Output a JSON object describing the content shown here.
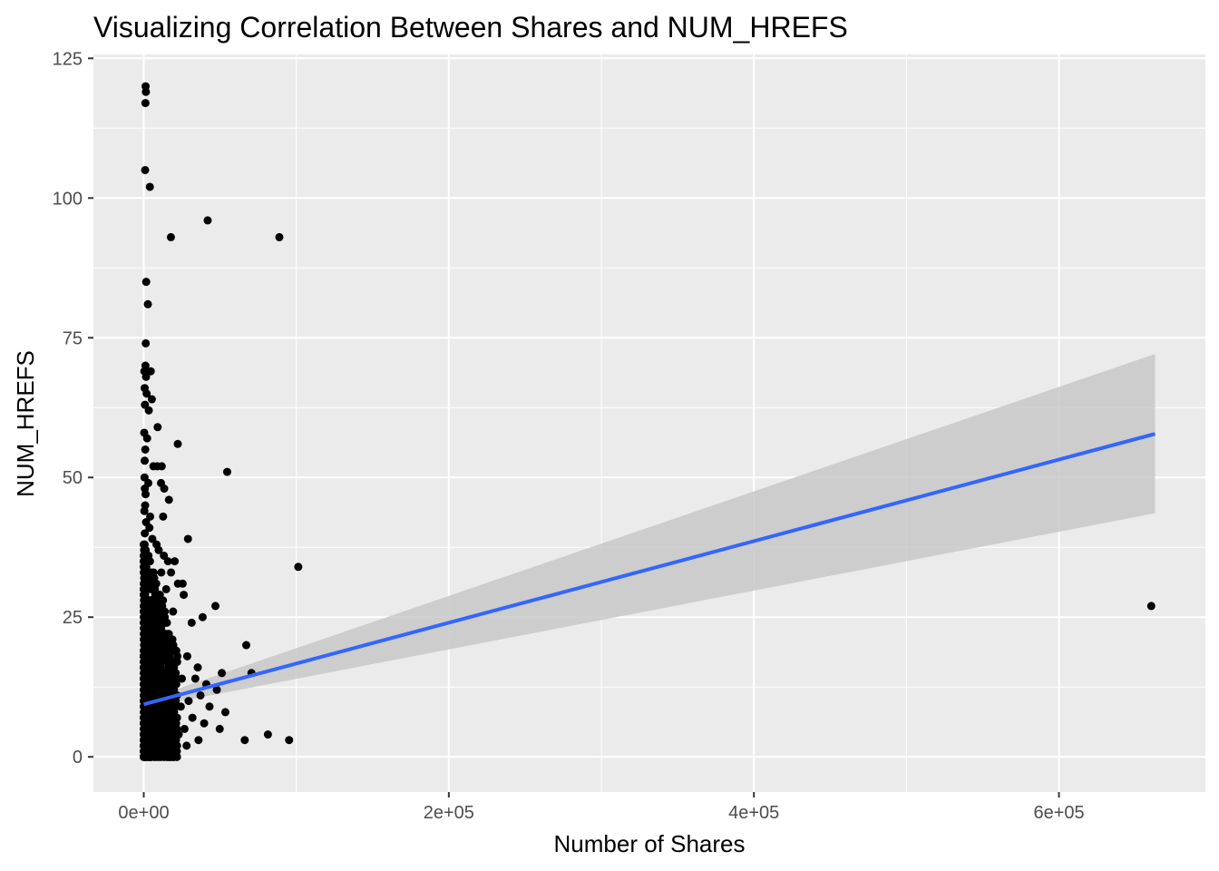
{
  "chart_data": {
    "type": "scatter",
    "title": "Visualizing Correlation Between Shares and NUM_HREFS",
    "xlabel": "Number of Shares",
    "ylabel": "NUM_HREFS",
    "xlim": [
      -33000,
      696000
    ],
    "ylim": [
      -6.3,
      125.7
    ],
    "x_ticks": [
      0,
      200000,
      400000,
      600000
    ],
    "x_tick_labels": [
      "0e+00",
      "2e+05",
      "4e+05",
      "6e+05"
    ],
    "y_ticks": [
      0,
      25,
      50,
      75,
      100,
      125
    ],
    "y_tick_labels": [
      "0",
      "25",
      "50",
      "75",
      "100",
      "125"
    ],
    "grid": true,
    "legend": "none",
    "colors": {
      "panel": "#ebebeb",
      "grid": "#ffffff",
      "points": "#000000",
      "trend_line": "#3366ff",
      "confidence_band": "#c8c8c8"
    },
    "points": [
      {
        "x": 1200,
        "y": 120
      },
      {
        "x": 1400,
        "y": 119
      },
      {
        "x": 1100,
        "y": 117
      },
      {
        "x": 900,
        "y": 105
      },
      {
        "x": 4000,
        "y": 102
      },
      {
        "x": 41900,
        "y": 96
      },
      {
        "x": 17800,
        "y": 93
      },
      {
        "x": 88900,
        "y": 93
      },
      {
        "x": 1600,
        "y": 85
      },
      {
        "x": 2700,
        "y": 81
      },
      {
        "x": 1300,
        "y": 74
      },
      {
        "x": 1100,
        "y": 70
      },
      {
        "x": 400,
        "y": 69
      },
      {
        "x": 4600,
        "y": 69
      },
      {
        "x": 1500,
        "y": 68
      },
      {
        "x": 600,
        "y": 66
      },
      {
        "x": 1900,
        "y": 65
      },
      {
        "x": 5300,
        "y": 64
      },
      {
        "x": 800,
        "y": 63
      },
      {
        "x": 3300,
        "y": 62
      },
      {
        "x": 9100,
        "y": 59
      },
      {
        "x": 300,
        "y": 58
      },
      {
        "x": 2200,
        "y": 57
      },
      {
        "x": 22300,
        "y": 56
      },
      {
        "x": 1000,
        "y": 55
      },
      {
        "x": 600,
        "y": 53
      },
      {
        "x": 6300,
        "y": 52
      },
      {
        "x": 8900,
        "y": 52
      },
      {
        "x": 11800,
        "y": 52
      },
      {
        "x": 54700,
        "y": 51
      },
      {
        "x": 500,
        "y": 50
      },
      {
        "x": 3000,
        "y": 49
      },
      {
        "x": 11300,
        "y": 49
      },
      {
        "x": 700,
        "y": 48
      },
      {
        "x": 13400,
        "y": 48
      },
      {
        "x": 1200,
        "y": 47
      },
      {
        "x": 16500,
        "y": 46
      },
      {
        "x": 900,
        "y": 45
      },
      {
        "x": 400,
        "y": 44
      },
      {
        "x": 4200,
        "y": 43
      },
      {
        "x": 1500,
        "y": 42
      },
      {
        "x": 3700,
        "y": 41
      },
      {
        "x": 700,
        "y": 40
      },
      {
        "x": 12700,
        "y": 43
      },
      {
        "x": 29000,
        "y": 39
      },
      {
        "x": 5600,
        "y": 39
      },
      {
        "x": 8400,
        "y": 38
      },
      {
        "x": 9800,
        "y": 37
      },
      {
        "x": 13200,
        "y": 36
      },
      {
        "x": 15900,
        "y": 35
      },
      {
        "x": 20300,
        "y": 35
      },
      {
        "x": 101300,
        "y": 34
      },
      {
        "x": 11500,
        "y": 33
      },
      {
        "x": 17900,
        "y": 33
      },
      {
        "x": 6800,
        "y": 32
      },
      {
        "x": 22400,
        "y": 31
      },
      {
        "x": 25500,
        "y": 31
      },
      {
        "x": 14700,
        "y": 30
      },
      {
        "x": 8000,
        "y": 29
      },
      {
        "x": 26200,
        "y": 29
      },
      {
        "x": 12600,
        "y": 28
      },
      {
        "x": 47000,
        "y": 27
      },
      {
        "x": 660500,
        "y": 27
      },
      {
        "x": 19200,
        "y": 26
      },
      {
        "x": 38600,
        "y": 25
      },
      {
        "x": 31400,
        "y": 24
      },
      {
        "x": 10300,
        "y": 23
      },
      {
        "x": 16400,
        "y": 22
      },
      {
        "x": 7200,
        "y": 21
      },
      {
        "x": 67200,
        "y": 20
      },
      {
        "x": 13900,
        "y": 19
      },
      {
        "x": 28500,
        "y": 18
      },
      {
        "x": 21900,
        "y": 17
      },
      {
        "x": 11000,
        "y": 16
      },
      {
        "x": 35400,
        "y": 16
      },
      {
        "x": 51200,
        "y": 15
      },
      {
        "x": 70600,
        "y": 15
      },
      {
        "x": 25000,
        "y": 14
      },
      {
        "x": 33800,
        "y": 14
      },
      {
        "x": 41000,
        "y": 13
      },
      {
        "x": 47900,
        "y": 12
      },
      {
        "x": 19800,
        "y": 12
      },
      {
        "x": 8700,
        "y": 11
      },
      {
        "x": 37200,
        "y": 11
      },
      {
        "x": 15800,
        "y": 10
      },
      {
        "x": 29400,
        "y": 10
      },
      {
        "x": 43100,
        "y": 9
      },
      {
        "x": 24300,
        "y": 9
      },
      {
        "x": 53500,
        "y": 8
      },
      {
        "x": 12100,
        "y": 8
      },
      {
        "x": 31900,
        "y": 7
      },
      {
        "x": 20700,
        "y": 7
      },
      {
        "x": 39600,
        "y": 6
      },
      {
        "x": 14300,
        "y": 6
      },
      {
        "x": 26700,
        "y": 5
      },
      {
        "x": 49800,
        "y": 5
      },
      {
        "x": 9600,
        "y": 4
      },
      {
        "x": 81400,
        "y": 4
      },
      {
        "x": 22900,
        "y": 4
      },
      {
        "x": 35900,
        "y": 3
      },
      {
        "x": 66200,
        "y": 3
      },
      {
        "x": 95300,
        "y": 3
      },
      {
        "x": 17400,
        "y": 3
      },
      {
        "x": 28100,
        "y": 2
      },
      {
        "x": 6500,
        "y": 2
      },
      {
        "x": 11900,
        "y": 1
      },
      {
        "x": 19000,
        "y": 1
      },
      {
        "x": 4100,
        "y": 0
      },
      {
        "x": 13600,
        "y": 0
      },
      {
        "x": 21600,
        "y": 0
      },
      {
        "x": 2900,
        "y": 5
      },
      {
        "x": 5700,
        "y": 9
      },
      {
        "x": 2100,
        "y": 14
      },
      {
        "x": 7500,
        "y": 18
      },
      {
        "x": 3600,
        "y": 24
      },
      {
        "x": 4900,
        "y": 30
      },
      {
        "x": 2400,
        "y": 36
      }
    ],
    "dense_cluster": {
      "x_range": [
        0,
        22000
      ],
      "y_range": [
        0,
        40
      ]
    },
    "trend_line": {
      "method": "linear",
      "x": [
        0,
        663000
      ],
      "y": [
        9.4,
        57.8
      ],
      "ci_upper": [
        10.1,
        72.1
      ],
      "ci_lower": [
        8.7,
        43.6
      ]
    }
  }
}
